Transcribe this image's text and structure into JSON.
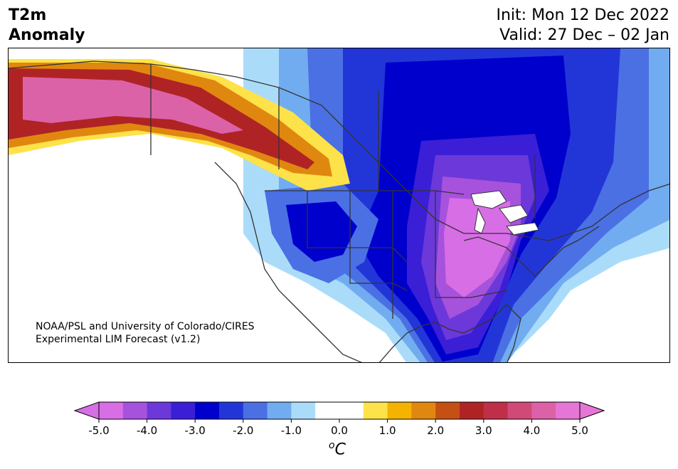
{
  "header": {
    "title_line1": "T2m",
    "title_line2": "Anomaly",
    "init_line": "Init: Mon 12 Dec 2022",
    "valid_line": "Valid: 27 Dec – 02 Jan"
  },
  "map": {
    "credit_line1": "NOAA/PSL and University of Colorado/CIRES",
    "credit_line2": "Experimental LIM Forecast (v1.2)"
  },
  "colorbar": {
    "unit_base": "C",
    "unit_sup": "o",
    "tick_labels": [
      "-5.0",
      "-4.0",
      "-3.0",
      "-2.0",
      "-1.0",
      "0.0",
      "1.0",
      "2.0",
      "3.0",
      "4.0",
      "5.0"
    ],
    "colors": [
      "#d86ee6",
      "#a752dc",
      "#6c38da",
      "#3a1fd6",
      "#0000cd",
      "#2236d8",
      "#4a70e4",
      "#72acf0",
      "#aadcfa",
      "#ffffff",
      "#ffffff",
      "#fde24a",
      "#f3b300",
      "#e08710",
      "#c55014",
      "#b02325",
      "#c02f48",
      "#d04a78",
      "#dc62a8",
      "#e676d6"
    ],
    "under_color": "#d86ee6",
    "over_color": "#e676d6"
  }
}
